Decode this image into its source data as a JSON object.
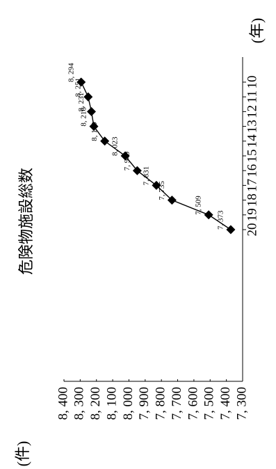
{
  "chart_data": {
    "type": "line",
    "title": "危険物施設総数",
    "xlabel": "(年)",
    "ylabel": "(件)",
    "x": [
      "10",
      "11",
      "12",
      "13",
      "14",
      "15",
      "16",
      "17",
      "18",
      "19",
      "20"
    ],
    "values": [
      8294,
      8251,
      8231,
      8216,
      8149,
      8023,
      7949,
      7831,
      7735,
      7509,
      7373
    ],
    "data_labels": [
      "8, 294",
      "8, 251",
      "8, 231",
      "8, 216",
      "8, 149",
      "8, 023",
      "7, 949",
      "7, 831",
      "7, 735",
      "7, 509",
      "7, 373"
    ],
    "y_ticks": [
      8400,
      8300,
      8200,
      8100,
      8000,
      7900,
      7800,
      7700,
      7600,
      7500,
      7400,
      7300
    ],
    "y_tick_labels": [
      "8, 400",
      "8, 300",
      "8, 200",
      "8, 100",
      "8, 000",
      "7, 900",
      "7, 800",
      "7, 700",
      "7, 600",
      "7, 500",
      "7, 400",
      "7, 300"
    ],
    "ylim": [
      7300,
      8400
    ],
    "grid": false,
    "legend": "none",
    "orientation": "rotated-90",
    "marker": "diamond",
    "line_color": "#000000"
  }
}
